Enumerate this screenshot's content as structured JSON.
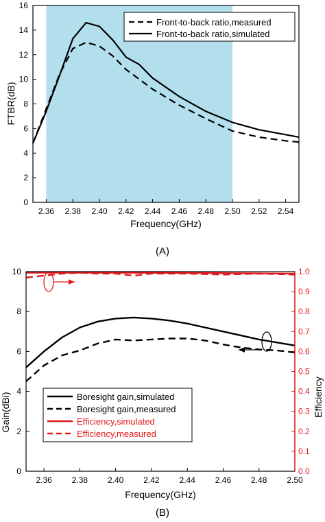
{
  "panels": [
    {
      "label": "(A)"
    },
    {
      "label": "(B)"
    }
  ],
  "chart_data": [
    {
      "type": "line",
      "xlabel": "Frequency(GHz)",
      "ylabel": "FTBR(dB)",
      "xlim": [
        2.35,
        2.55
      ],
      "ylim": [
        0,
        16
      ],
      "xticks": [
        "2.36",
        "2.38",
        "2.40",
        "2.42",
        "2.44",
        "2.46",
        "2.48",
        "2.50",
        "2.52",
        "2.54"
      ],
      "yticks": [
        "0",
        "2",
        "4",
        "6",
        "8",
        "10",
        "12",
        "14",
        "16"
      ],
      "band": {
        "from": 2.36,
        "to": 2.5,
        "color": "#b3dfec"
      },
      "legend_position": "top-right",
      "series": [
        {
          "name": "Front-to-back ratio,measured",
          "style": "dashed",
          "color": "#000000",
          "x": [
            2.35,
            2.36,
            2.37,
            2.38,
            2.39,
            2.4,
            2.41,
            2.42,
            2.43,
            2.44,
            2.46,
            2.48,
            2.5,
            2.52,
            2.54,
            2.55
          ],
          "y": [
            4.8,
            7.6,
            10.4,
            12.5,
            13.0,
            12.7,
            11.9,
            10.8,
            10.0,
            9.2,
            7.9,
            6.8,
            5.8,
            5.3,
            5.0,
            4.9
          ]
        },
        {
          "name": "Front-to-back ratio,simulated",
          "style": "solid",
          "color": "#000000",
          "x": [
            2.35,
            2.36,
            2.37,
            2.38,
            2.39,
            2.4,
            2.41,
            2.42,
            2.43,
            2.44,
            2.46,
            2.48,
            2.5,
            2.52,
            2.54,
            2.55
          ],
          "y": [
            4.8,
            7.4,
            10.3,
            13.3,
            14.6,
            14.3,
            13.2,
            11.8,
            11.2,
            10.1,
            8.6,
            7.4,
            6.5,
            5.9,
            5.5,
            5.3
          ]
        }
      ]
    },
    {
      "type": "line",
      "xlabel": "Frequency(GHz)",
      "ylabel": "Gain(dBi)",
      "y2label": "Efficiency",
      "xlim": [
        2.35,
        2.5
      ],
      "ylim": [
        0,
        10
      ],
      "y2lim": [
        0,
        1.0
      ],
      "xticks": [
        "2.36",
        "2.38",
        "2.40",
        "2.42",
        "2.44",
        "2.46",
        "2.48",
        "2.50"
      ],
      "yticks": [
        "0",
        "2",
        "4",
        "6",
        "8",
        "10"
      ],
      "y2ticks": [
        "0.0",
        "0.1",
        "0.2",
        "0.3",
        "0.4",
        "0.5",
        "0.6",
        "0.7",
        "0.8",
        "0.9",
        "1.0"
      ],
      "legend_position": "bottom-left",
      "series": [
        {
          "name": "Boresight gain,simulated",
          "style": "solid",
          "color": "#000000",
          "axis": "left",
          "x": [
            2.35,
            2.36,
            2.37,
            2.38,
            2.39,
            2.4,
            2.41,
            2.42,
            2.43,
            2.44,
            2.45,
            2.46,
            2.47,
            2.48,
            2.49,
            2.5
          ],
          "y": [
            5.2,
            6.0,
            6.7,
            7.2,
            7.5,
            7.65,
            7.7,
            7.65,
            7.55,
            7.4,
            7.2,
            7.0,
            6.8,
            6.6,
            6.45,
            6.3
          ]
        },
        {
          "name": "Boresight gain,measured",
          "style": "dashed",
          "color": "#000000",
          "axis": "left",
          "x": [
            2.35,
            2.36,
            2.37,
            2.38,
            2.39,
            2.4,
            2.41,
            2.42,
            2.43,
            2.44,
            2.45,
            2.46,
            2.47,
            2.48,
            2.49,
            2.5
          ],
          "y": [
            4.5,
            5.3,
            5.8,
            6.05,
            6.4,
            6.6,
            6.55,
            6.6,
            6.65,
            6.65,
            6.55,
            6.35,
            6.2,
            6.1,
            6.05,
            5.95
          ]
        },
        {
          "name": "Efficiency,simulated",
          "style": "solid",
          "color": "#e31a1c",
          "axis": "right",
          "x": [
            2.35,
            2.4,
            2.45,
            2.5
          ],
          "y": [
            0.995,
            0.995,
            0.993,
            0.99
          ]
        },
        {
          "name": "Efficiency,measured",
          "style": "dashed",
          "color": "#e31a1c",
          "axis": "right",
          "x": [
            2.35,
            2.36,
            2.37,
            2.38,
            2.39,
            2.4,
            2.41,
            2.42,
            2.43,
            2.44,
            2.46,
            2.48,
            2.5
          ],
          "y": [
            0.97,
            0.98,
            0.99,
            0.995,
            0.99,
            0.99,
            0.98,
            0.99,
            0.99,
            0.99,
            0.985,
            0.99,
            0.985
          ]
        }
      ]
    }
  ]
}
